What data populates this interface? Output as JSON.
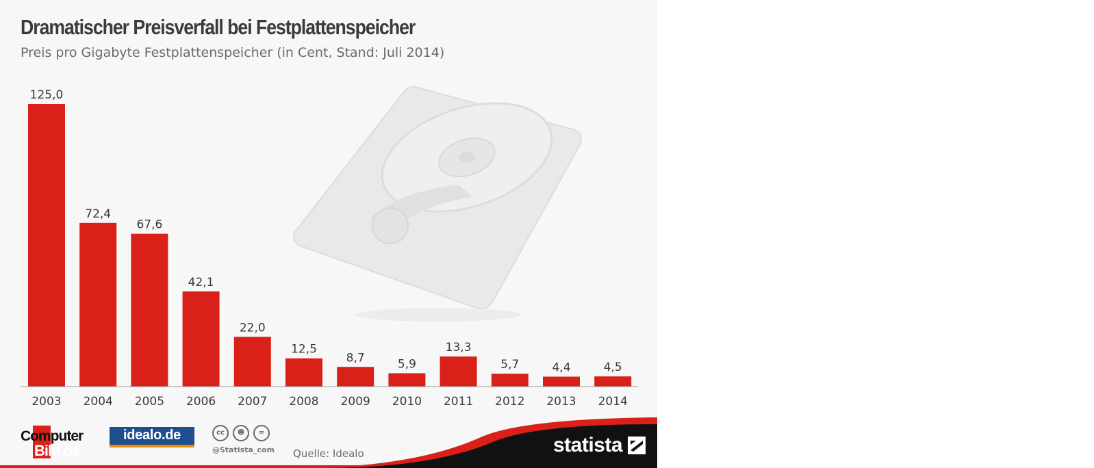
{
  "header": {
    "title": "Dramatischer Preisverfall bei Festplattenspeicher",
    "subtitle": "Preis pro Gigabyte Festplattenspeicher (in Cent, Stand: Juli 2014)"
  },
  "chart_data": {
    "type": "bar",
    "title": "Dramatischer Preisverfall bei Festplattenspeicher",
    "subtitle": "Preis pro Gigabyte Festplattenspeicher (in Cent, Stand: Juli 2014)",
    "categories": [
      "2003",
      "2004",
      "2005",
      "2006",
      "2007",
      "2008",
      "2009",
      "2010",
      "2011",
      "2012",
      "2013",
      "2014"
    ],
    "values": [
      125.0,
      72.4,
      67.6,
      42.1,
      22.0,
      12.5,
      8.7,
      5.9,
      13.3,
      5.7,
      4.4,
      4.5
    ],
    "value_labels": [
      "125,0",
      "72,4",
      "67,6",
      "42,1",
      "22,0",
      "12,5",
      "8,7",
      "5,9",
      "13,3",
      "5,7",
      "4,4",
      "4,5"
    ],
    "ylim": [
      0,
      125
    ],
    "grid": false,
    "bar_color": "#d92019"
  },
  "footer": {
    "logo_computerbild_top": "Computer",
    "logo_computerbild_bottom": "Bild.de",
    "logo_idealo": "idealo.de",
    "license_icons": [
      "cc-icon",
      "by-icon",
      "nd-icon"
    ],
    "handle": "@Statista_com",
    "source": "Quelle: Idealo",
    "brand": "statista"
  },
  "colors": {
    "accent": "#d92019",
    "footer_dark": "#111111",
    "background": "#f7f7f7"
  }
}
